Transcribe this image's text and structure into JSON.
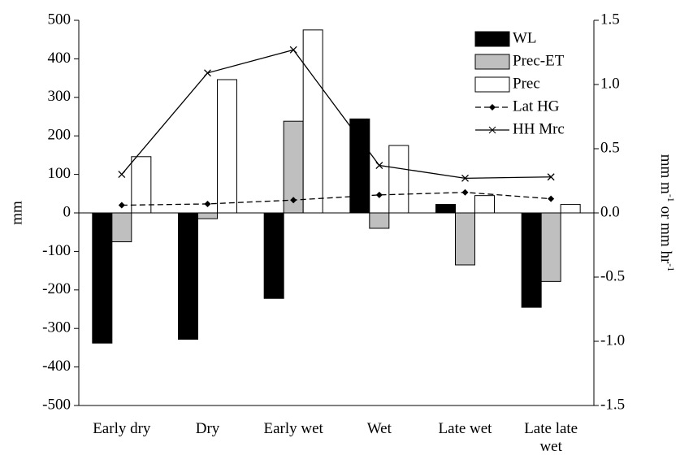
{
  "chart_data": {
    "type": "bar",
    "categories": [
      "Early dry",
      "Dry",
      "Early wet",
      "Wet",
      "Late wet",
      "Late late wet"
    ],
    "series": [
      {
        "name": "WL",
        "color": "#000000",
        "values": [
          -338,
          -328,
          -222,
          244,
          22,
          -245
        ]
      },
      {
        "name": "Prec-ET",
        "color": "#bfbfbf",
        "values": [
          -75,
          -15,
          238,
          -40,
          -135,
          -178
        ]
      },
      {
        "name": "Prec",
        "color": "#ffffff",
        "values": [
          146,
          346,
          475,
          175,
          45,
          22
        ]
      },
      {
        "name": "Lat HG",
        "type": "line",
        "axis": "y2",
        "color": "#000000",
        "dash": true,
        "marker": "diamond",
        "values": [
          0.06,
          0.07,
          0.1,
          0.14,
          0.16,
          0.11
        ]
      },
      {
        "name": "HH Mrc",
        "type": "line",
        "axis": "y2",
        "color": "#000000",
        "dash": false,
        "marker": "x",
        "values": [
          0.3,
          1.09,
          1.27,
          0.37,
          0.27,
          0.28
        ]
      }
    ],
    "ylabel": "mm",
    "y2label": "mm m-1 or mm hr-1",
    "ylim": [
      -500,
      500
    ],
    "yticks": [
      -500,
      -400,
      -300,
      -200,
      -100,
      0,
      100,
      200,
      300,
      400,
      500
    ],
    "y2lim": [
      -1.5,
      1.5
    ],
    "y2ticks": [
      -1.5,
      {
        "value": -1,
        "label": "-1.0"
      },
      -0.5,
      {
        "value": 0,
        "label": "0.0"
      },
      0.5,
      {
        "value": 1,
        "label": "1.0"
      },
      1.5
    ],
    "legend": "upper right"
  }
}
